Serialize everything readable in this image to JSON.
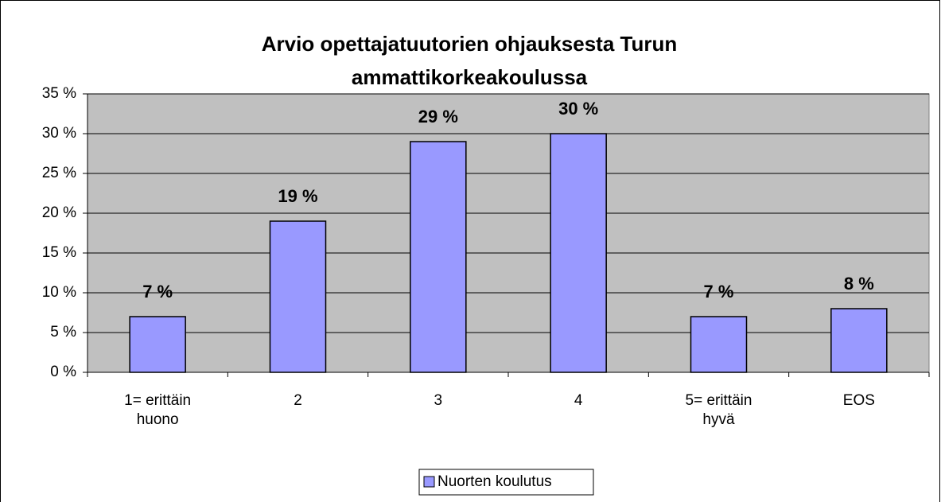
{
  "chart_data": {
    "type": "bar",
    "title": "Arvio opettajatuutorien ohjauksesta Turun ammattikorkeakoulussa",
    "categories": [
      "1= erittäin\nhuono",
      "2",
      "3",
      "4",
      "5= erittäin\nhyvä",
      "EOS"
    ],
    "series": [
      {
        "name": "Nuorten koulutus",
        "color": "#9999ff",
        "values": [
          7,
          19,
          29,
          30,
          7,
          8
        ],
        "value_labels": [
          "7 %",
          "19 %",
          "29 %",
          "30 %",
          "7 %",
          "8 %"
        ]
      }
    ],
    "ylim": [
      0,
      35
    ],
    "yticks": [
      {
        "value": 0,
        "label": "0 %"
      },
      {
        "value": 5,
        "label": "5 %"
      },
      {
        "value": 10,
        "label": "10 %"
      },
      {
        "value": 15,
        "label": "15 %"
      },
      {
        "value": 20,
        "label": "20 %"
      },
      {
        "value": 25,
        "label": "25 %"
      },
      {
        "value": 30,
        "label": "30 %"
      },
      {
        "value": 35,
        "label": "35 %"
      }
    ],
    "grid": true,
    "legend": "bottom"
  }
}
